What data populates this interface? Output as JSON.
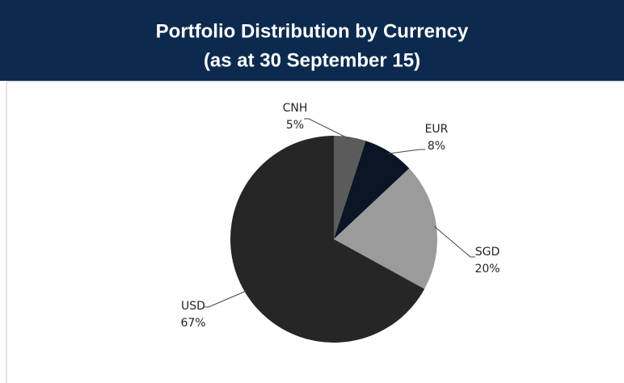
{
  "chart_data": {
    "type": "pie",
    "title": "Portfolio Distribution by Currency",
    "subtitle": "(as at 30 September 15)",
    "categories": [
      "CNH",
      "EUR",
      "SGD",
      "USD"
    ],
    "values": [
      5,
      8,
      20,
      67
    ],
    "value_labels": [
      "5%",
      "8%",
      "20%",
      "67%"
    ],
    "colors": [
      "#5b5b5b",
      "#0a1526",
      "#9b9b9b",
      "#262626"
    ]
  }
}
